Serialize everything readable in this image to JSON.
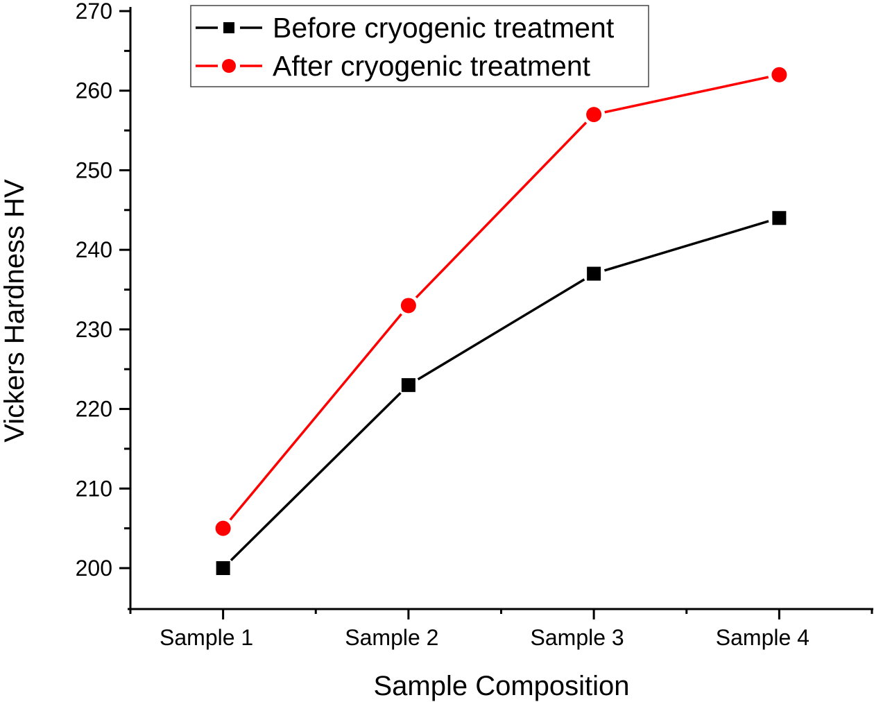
{
  "chart_data": {
    "type": "line",
    "title": "",
    "xlabel": "Sample Composition",
    "ylabel": "Vickers Hardness HV",
    "categories": [
      "Sample 1",
      "Sample 2",
      "Sample 3",
      "Sample 4"
    ],
    "ylim": [
      195,
      270
    ],
    "yticks": [
      200,
      210,
      220,
      230,
      240,
      250,
      260,
      270
    ],
    "grid": false,
    "legend_position": "top-center",
    "series": [
      {
        "name": "Before cryogenic treatment",
        "color": "#000000",
        "marker": "square",
        "values": [
          200,
          223,
          237,
          244
        ]
      },
      {
        "name": "After cryogenic treatment",
        "color": "#ff0000",
        "marker": "circle",
        "values": [
          205,
          233,
          257,
          262
        ]
      }
    ]
  }
}
